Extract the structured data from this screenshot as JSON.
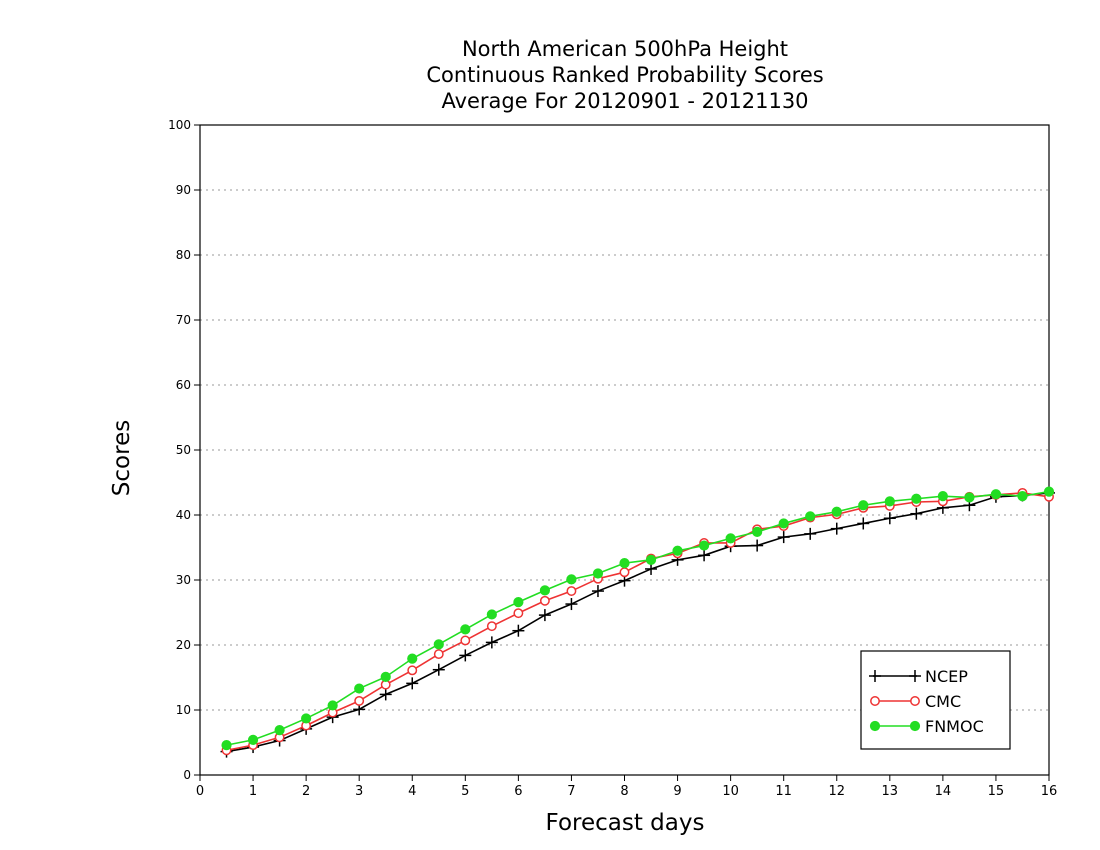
{
  "chart_data": {
    "type": "line",
    "title": [
      "North American 500hPa Height",
      "Continuous Ranked Probability Scores",
      "Average For 20120901 - 20121130"
    ],
    "xlabel": "Forecast days",
    "ylabel": "Scores",
    "xlim": [
      0,
      16
    ],
    "ylim": [
      0,
      100
    ],
    "xticks": [
      0,
      1,
      2,
      3,
      4,
      5,
      6,
      7,
      8,
      9,
      10,
      11,
      12,
      13,
      14,
      15,
      16
    ],
    "yticks": [
      0,
      10,
      20,
      30,
      40,
      50,
      60,
      70,
      80,
      90,
      100
    ],
    "grid": "horizontal dotted",
    "legend_position": "bottom-right",
    "x": [
      0.5,
      1,
      1.5,
      2,
      2.5,
      3,
      3.5,
      4,
      4.5,
      5,
      5.5,
      6,
      6.5,
      7,
      7.5,
      8,
      8.5,
      9,
      9.5,
      10,
      10.5,
      11,
      11.5,
      12,
      12.5,
      13,
      13.5,
      14,
      14.5,
      15,
      15.5,
      16
    ],
    "series": [
      {
        "name": "NCEP",
        "color": "#000000",
        "marker": "plus",
        "values": [
          3.6,
          4.3,
          5.3,
          7.1,
          8.9,
          10.1,
          12.4,
          14.1,
          16.2,
          18.4,
          20.4,
          22.2,
          24.6,
          26.3,
          28.3,
          29.9,
          31.7,
          33.1,
          33.8,
          35.2,
          35.3,
          36.6,
          37.1,
          37.9,
          38.7,
          39.5,
          40.2,
          41.1,
          41.5,
          42.8,
          43.0,
          43.4
        ]
      },
      {
        "name": "CMC",
        "color": "#ee3333",
        "marker": "open-circle",
        "values": [
          3.8,
          4.6,
          5.8,
          7.6,
          9.6,
          11.4,
          13.9,
          16.1,
          18.6,
          20.7,
          22.9,
          24.9,
          26.8,
          28.3,
          30.2,
          31.2,
          33.3,
          34.1,
          35.7,
          35.7,
          37.8,
          38.3,
          39.6,
          40.1,
          41.1,
          41.4,
          42.0,
          42.1,
          42.8,
          43.1,
          43.4,
          42.8
        ]
      },
      {
        "name": "FNMOC",
        "color": "#22dd22",
        "marker": "filled-circle",
        "values": [
          4.6,
          5.4,
          6.9,
          8.7,
          10.7,
          13.3,
          15.1,
          17.9,
          20.1,
          22.4,
          24.7,
          26.6,
          28.4,
          30.1,
          31.0,
          32.6,
          33.1,
          34.5,
          35.3,
          36.4,
          37.4,
          38.7,
          39.8,
          40.5,
          41.5,
          42.1,
          42.5,
          42.9,
          42.7,
          43.2,
          42.9,
          43.6
        ]
      }
    ]
  }
}
